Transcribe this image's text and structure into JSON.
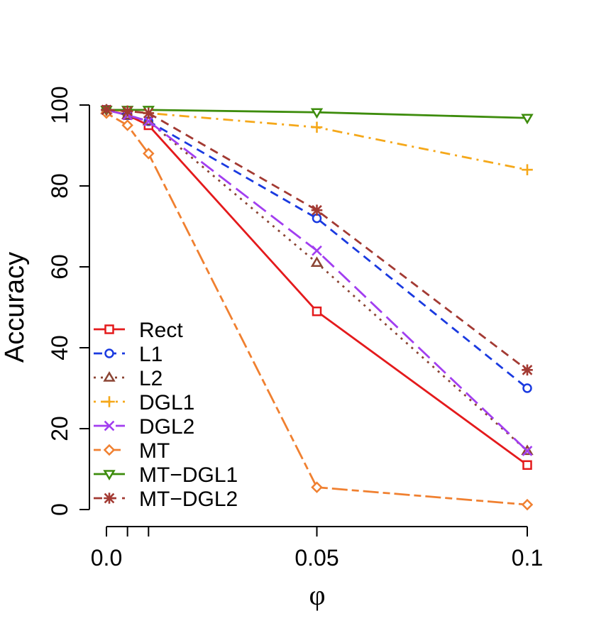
{
  "chart_data": {
    "type": "line",
    "title": "",
    "xlabel": "φ",
    "ylabel": "Accuracy",
    "x": [
      0,
      0.005,
      0.01,
      0.05,
      0.1
    ],
    "xlim": [
      0,
      0.1
    ],
    "ylim": [
      0,
      100
    ],
    "x_ticks": [
      0,
      0.005,
      0.01,
      0.05,
      0.1
    ],
    "x_tick_labels": [
      {
        "value": 0,
        "label": "0.0"
      },
      {
        "value": 0.05,
        "label": "0.05"
      },
      {
        "value": 0.1,
        "label": "0.1"
      }
    ],
    "y_ticks": [
      0,
      20,
      40,
      60,
      80,
      100
    ],
    "y_tick_labels": [
      "0",
      "20",
      "40",
      "60",
      "80",
      "100"
    ],
    "legend_position": "bottom-left",
    "series": [
      {
        "name": "Rect",
        "color": "#e41a1c",
        "dash": "solid",
        "marker": "square",
        "values": [
          98.8,
          97.5,
          95,
          49,
          11
        ]
      },
      {
        "name": "L1",
        "color": "#1a3ae0",
        "dash": "dashed",
        "marker": "circle",
        "values": [
          98.8,
          97.5,
          96,
          72,
          30
        ]
      },
      {
        "name": "L2",
        "color": "#8b4433",
        "dash": "dotted",
        "marker": "triangle-up",
        "values": [
          98.8,
          97.5,
          96,
          61,
          14.5
        ]
      },
      {
        "name": "DGL1",
        "color": "#f5a81a",
        "dash": "dotdash",
        "marker": "plus",
        "values": [
          98.8,
          98.5,
          98,
          94.5,
          84
        ]
      },
      {
        "name": "DGL2",
        "color": "#a23ef0",
        "dash": "longdash",
        "marker": "cross",
        "values": [
          98.8,
          97.5,
          96,
          64,
          14.5
        ]
      },
      {
        "name": "MT",
        "color": "#f08030",
        "dash": "twodash",
        "marker": "diamond",
        "values": [
          98,
          95,
          88,
          5.5,
          1.2
        ]
      },
      {
        "name": "MT−DGL1",
        "color": "#3d8c0c",
        "dash": "solid",
        "marker": "triangle-down",
        "values": [
          98.8,
          98.8,
          98.8,
          98.2,
          96.8
        ]
      },
      {
        "name": "MT−DGL2",
        "color": "#a33a33",
        "dash": "dashed",
        "marker": "star",
        "values": [
          98.8,
          98.5,
          98,
          74,
          34.5
        ]
      }
    ]
  }
}
